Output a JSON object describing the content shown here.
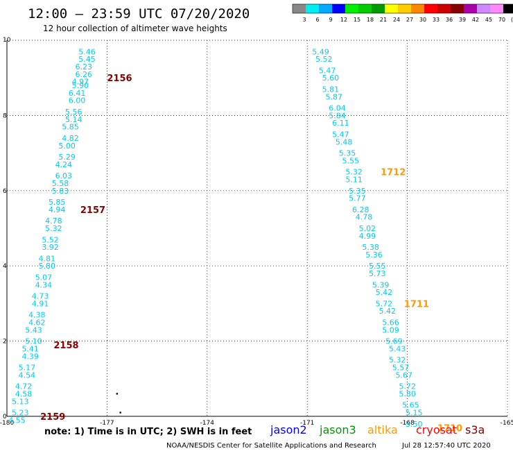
{
  "header": {
    "title": "12:00 – 23:59 UTC 07/20/2020",
    "subtitle": "12 hour collection of altimeter wave heights"
  },
  "colorbar": {
    "labels": [
      "3",
      "6",
      "9",
      "12",
      "15",
      "18",
      "21",
      "24",
      "27",
      "30",
      "33",
      "36",
      "39",
      "42",
      "45",
      "70",
      "(ft)"
    ],
    "colors": [
      "#888888",
      "#00eeee",
      "#00aaff",
      "#0000ff",
      "#00ee00",
      "#00cc00",
      "#009900",
      "#ffff00",
      "#ffcc00",
      "#ff8800",
      "#ff0000",
      "#cc0000",
      "#880000",
      "#aa00aa",
      "#cc88ff",
      "#ff88ff",
      "#000000"
    ]
  },
  "footer": {
    "note": "note:  1) Time is in UTC;  2) SWH is in feet",
    "satellites": [
      {
        "name": "jason2",
        "color": "#0000ff"
      },
      {
        "name": "jason3",
        "color": "#009900"
      },
      {
        "name": "altika",
        "color": "#ff9900"
      },
      {
        "name": "cryosat",
        "color": "#ff0000"
      },
      {
        "name": "s3a",
        "color": "#880000"
      }
    ],
    "credit": "NOAA/NESDIS Center for Satellite Applications and Research",
    "timestamp": "Jul 28 12:57:40 UTC 2020"
  },
  "chart_data": {
    "type": "scatter",
    "xlim": [
      -180,
      -165
    ],
    "ylim": [
      0,
      10
    ],
    "x_ticks": [
      "-180",
      "-177",
      "-174",
      "-171",
      "-168",
      "-165"
    ],
    "y_ticks": [
      "0",
      "2",
      "4",
      "6",
      "8",
      "10"
    ],
    "grid": true,
    "value_color": "#00ccee",
    "series": [
      {
        "track": "west",
        "points": [
          {
            "x": -177.6,
            "y": 9.7,
            "v": "5.46"
          },
          {
            "x": -177.6,
            "y": 9.5,
            "v": "5.45"
          },
          {
            "x": -177.7,
            "y": 9.3,
            "v": "6.23"
          },
          {
            "x": -177.7,
            "y": 9.1,
            "v": "6.26"
          },
          {
            "x": -177.8,
            "y": 8.9,
            "v": "4.97"
          },
          {
            "x": -177.8,
            "y": 8.8,
            "v": "5.90"
          },
          {
            "x": -177.9,
            "y": 8.6,
            "v": "6.41"
          },
          {
            "x": -177.9,
            "y": 8.4,
            "v": "6.00"
          },
          {
            "x": -178.0,
            "y": 8.1,
            "v": "5.56"
          },
          {
            "x": -178.0,
            "y": 7.9,
            "v": "5.14"
          },
          {
            "x": -178.1,
            "y": 7.7,
            "v": "5.85"
          },
          {
            "x": -178.1,
            "y": 7.4,
            "v": "4.82"
          },
          {
            "x": -178.2,
            "y": 7.2,
            "v": "5.00"
          },
          {
            "x": -178.2,
            "y": 6.9,
            "v": "5.29"
          },
          {
            "x": -178.3,
            "y": 6.7,
            "v": "4.24"
          },
          {
            "x": -178.3,
            "y": 6.4,
            "v": "6.03"
          },
          {
            "x": -178.4,
            "y": 6.2,
            "v": "5.58"
          },
          {
            "x": -178.4,
            "y": 6.0,
            "v": "5.83"
          },
          {
            "x": -178.5,
            "y": 5.7,
            "v": "5.85"
          },
          {
            "x": -178.5,
            "y": 5.5,
            "v": "4.94"
          },
          {
            "x": -178.6,
            "y": 5.2,
            "v": "4.78"
          },
          {
            "x": -178.6,
            "y": 5.0,
            "v": "5.32"
          },
          {
            "x": -178.7,
            "y": 4.7,
            "v": "5.52"
          },
          {
            "x": -178.7,
            "y": 4.5,
            "v": "3.92"
          },
          {
            "x": -178.8,
            "y": 4.2,
            "v": "4.81"
          },
          {
            "x": -178.8,
            "y": 4.0,
            "v": "5.80"
          },
          {
            "x": -178.9,
            "y": 3.7,
            "v": "5.07"
          },
          {
            "x": -178.9,
            "y": 3.5,
            "v": "4.34"
          },
          {
            "x": -179.0,
            "y": 3.2,
            "v": "4.73"
          },
          {
            "x": -179.0,
            "y": 3.0,
            "v": "4.91"
          },
          {
            "x": -179.1,
            "y": 2.7,
            "v": "4.38"
          },
          {
            "x": -179.1,
            "y": 2.5,
            "v": "4.62"
          },
          {
            "x": -179.2,
            "y": 2.3,
            "v": "5.43"
          },
          {
            "x": -179.2,
            "y": 2.0,
            "v": "5.10"
          },
          {
            "x": -179.3,
            "y": 1.8,
            "v": "5.41"
          },
          {
            "x": -179.3,
            "y": 1.6,
            "v": "4.39"
          },
          {
            "x": -179.4,
            "y": 1.3,
            "v": "5.17"
          },
          {
            "x": -179.4,
            "y": 1.1,
            "v": "4.54"
          },
          {
            "x": -179.5,
            "y": 0.8,
            "v": "4.72"
          },
          {
            "x": -179.5,
            "y": 0.6,
            "v": "4.58"
          },
          {
            "x": -179.6,
            "y": 0.4,
            "v": "5.13"
          },
          {
            "x": -179.6,
            "y": 0.1,
            "v": "5.23"
          },
          {
            "x": -179.7,
            "y": -0.1,
            "v": "4.55"
          }
        ]
      },
      {
        "track": "east",
        "points": [
          {
            "x": -170.6,
            "y": 9.7,
            "v": "5.49"
          },
          {
            "x": -170.5,
            "y": 9.5,
            "v": "5.52"
          },
          {
            "x": -170.4,
            "y": 9.2,
            "v": "5.47"
          },
          {
            "x": -170.3,
            "y": 9.0,
            "v": "5.60"
          },
          {
            "x": -170.3,
            "y": 8.7,
            "v": "5.81"
          },
          {
            "x": -170.2,
            "y": 8.5,
            "v": "5.87"
          },
          {
            "x": -170.1,
            "y": 8.2,
            "v": "6.04"
          },
          {
            "x": -170.1,
            "y": 8.0,
            "v": "5.84"
          },
          {
            "x": -170.0,
            "y": 7.8,
            "v": "6.11"
          },
          {
            "x": -170.0,
            "y": 7.5,
            "v": "5.47"
          },
          {
            "x": -169.9,
            "y": 7.3,
            "v": "5.48"
          },
          {
            "x": -169.8,
            "y": 7.0,
            "v": "5.35"
          },
          {
            "x": -169.7,
            "y": 6.8,
            "v": "5.55"
          },
          {
            "x": -169.6,
            "y": 6.5,
            "v": "5.32"
          },
          {
            "x": -169.6,
            "y": 6.3,
            "v": "5.11"
          },
          {
            "x": -169.5,
            "y": 6.0,
            "v": "5.35"
          },
          {
            "x": -169.5,
            "y": 5.8,
            "v": "5.77"
          },
          {
            "x": -169.4,
            "y": 5.5,
            "v": "6.28"
          },
          {
            "x": -169.3,
            "y": 5.3,
            "v": "4.78"
          },
          {
            "x": -169.2,
            "y": 5.0,
            "v": "5.02"
          },
          {
            "x": -169.2,
            "y": 4.8,
            "v": "4.99"
          },
          {
            "x": -169.1,
            "y": 4.5,
            "v": "5.38"
          },
          {
            "x": -169.0,
            "y": 4.3,
            "v": "5.36"
          },
          {
            "x": -168.9,
            "y": 4.0,
            "v": "5.55"
          },
          {
            "x": -168.9,
            "y": 3.8,
            "v": "5.73"
          },
          {
            "x": -168.8,
            "y": 3.5,
            "v": "5.39"
          },
          {
            "x": -168.7,
            "y": 3.3,
            "v": "5.42"
          },
          {
            "x": -168.7,
            "y": 3.0,
            "v": "5.72"
          },
          {
            "x": -168.6,
            "y": 2.8,
            "v": "5.42"
          },
          {
            "x": -168.5,
            "y": 2.5,
            "v": "5.66"
          },
          {
            "x": -168.5,
            "y": 2.3,
            "v": "5.09"
          },
          {
            "x": -168.4,
            "y": 2.0,
            "v": "5.69"
          },
          {
            "x": -168.3,
            "y": 1.8,
            "v": "5.43"
          },
          {
            "x": -168.3,
            "y": 1.5,
            "v": "5.32"
          },
          {
            "x": -168.2,
            "y": 1.3,
            "v": "5.57"
          },
          {
            "x": -168.1,
            "y": 1.1,
            "v": "5.67"
          },
          {
            "x": -168.0,
            "y": 0.8,
            "v": "5.72"
          },
          {
            "x": -168.0,
            "y": 0.6,
            "v": "5.80"
          },
          {
            "x": -167.9,
            "y": 0.3,
            "v": "5.65"
          },
          {
            "x": -167.8,
            "y": 0.1,
            "v": "5.15"
          },
          {
            "x": -167.8,
            "y": -0.2,
            "v": "5.50"
          }
        ]
      }
    ],
    "time_labels": [
      {
        "x": -177.0,
        "y": 9.0,
        "text": "2156",
        "color": "#880000"
      },
      {
        "x": -177.8,
        "y": 5.5,
        "text": "2157",
        "color": "#880000"
      },
      {
        "x": -178.6,
        "y": 1.9,
        "text": "2158",
        "color": "#880000"
      },
      {
        "x": -179.0,
        "y": 0.0,
        "text": "2159",
        "color": "#880000"
      },
      {
        "x": -168.8,
        "y": 6.5,
        "text": "1712",
        "color": "#ff9900"
      },
      {
        "x": -168.1,
        "y": 3.0,
        "text": "1711",
        "color": "#ff9900"
      },
      {
        "x": -167.1,
        "y": -0.3,
        "text": "1710",
        "color": "#ff9900"
      }
    ],
    "dots": [
      {
        "x": -176.7,
        "y": 0.6
      },
      {
        "x": -176.6,
        "y": 0.1
      }
    ]
  }
}
